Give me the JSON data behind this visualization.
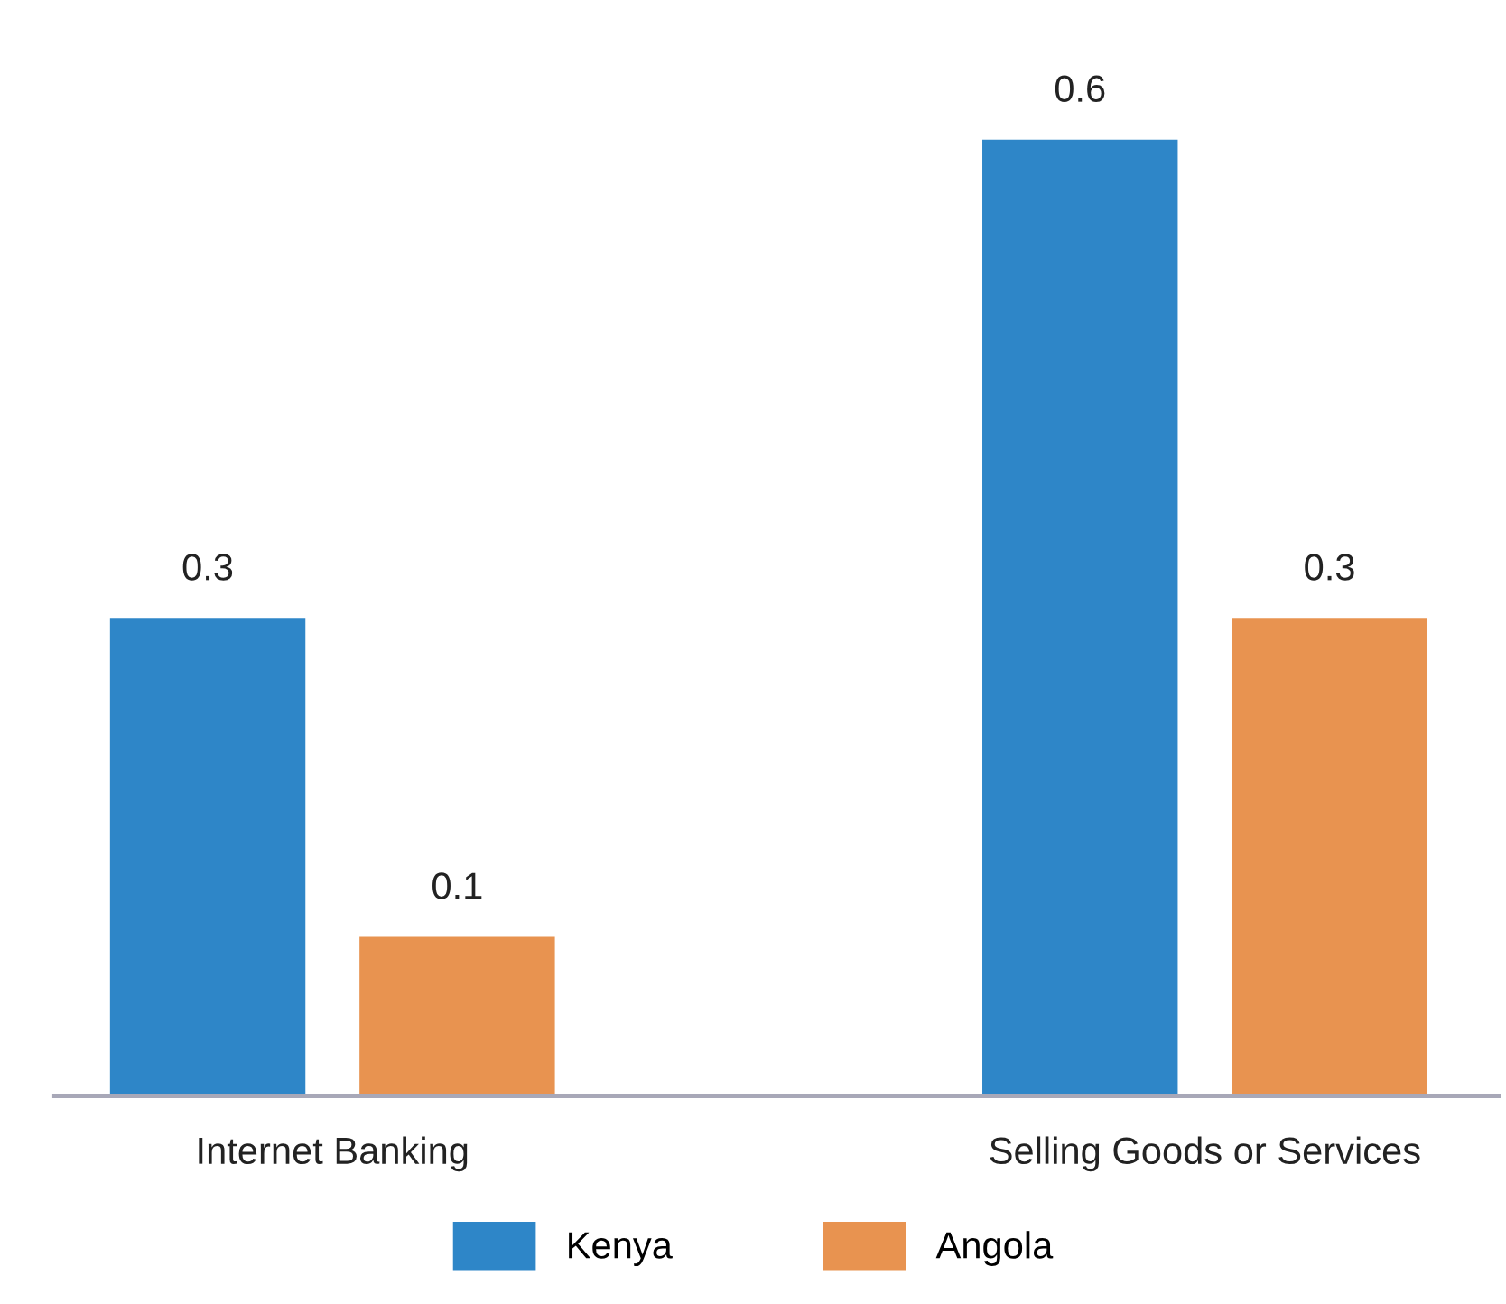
{
  "chart_data": {
    "type": "bar",
    "categories": [
      "Internet Banking",
      "Selling Goods or Services"
    ],
    "series": [
      {
        "name": "Kenya",
        "color": "#2e86c8",
        "values": [
          0.3,
          0.6
        ]
      },
      {
        "name": "Angola",
        "color": "#e89350",
        "values": [
          0.1,
          0.3
        ]
      }
    ],
    "data_labels": true,
    "legend": "bottom",
    "grid": false,
    "tick_labels": "x"
  }
}
